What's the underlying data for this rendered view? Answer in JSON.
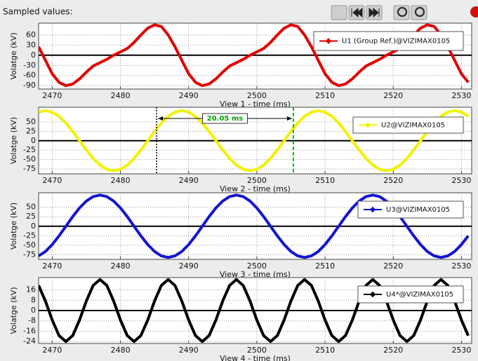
{
  "title": "Sampled values:",
  "chart_data": [
    {
      "type": "line",
      "xlabel": "View 1 - time (ms)",
      "ylabel": "Volatge (kV)",
      "x": [
        2468,
        2469,
        2470,
        2471,
        2472,
        2473,
        2474,
        2475,
        2476,
        2477,
        2478,
        2479,
        2480,
        2481,
        2482,
        2483,
        2484,
        2485,
        2486,
        2487,
        2488,
        2489,
        2490,
        2491,
        2492,
        2493,
        2494,
        2495,
        2496,
        2497,
        2498,
        2499,
        2500,
        2501,
        2502,
        2503,
        2504,
        2505,
        2506,
        2507,
        2508,
        2509,
        2510,
        2511,
        2512,
        2513,
        2514,
        2515,
        2516,
        2517,
        2518,
        2519,
        2520,
        2521,
        2522,
        2523,
        2524,
        2525,
        2526,
        2527,
        2528,
        2529,
        2530,
        2531
      ],
      "series": [
        {
          "name": "U1 (Group Ref.)@VIZIMAX0105",
          "color": "#e00000",
          "values": [
            25,
            -15,
            -55,
            -80,
            -90,
            -85,
            -70,
            -50,
            -32,
            -22,
            -12,
            0,
            10,
            20,
            38,
            60,
            80,
            90,
            85,
            60,
            25,
            -15,
            -55,
            -80,
            -90,
            -85,
            -70,
            -50,
            -32,
            -22,
            -12,
            0,
            10,
            20,
            38,
            60,
            80,
            90,
            85,
            60,
            25,
            -15,
            -55,
            -80,
            -90,
            -85,
            -70,
            -50,
            -32,
            -22,
            -12,
            0,
            10,
            20,
            38,
            60,
            80,
            90,
            85,
            60,
            25,
            -15,
            -55,
            -80
          ]
        }
      ],
      "xlim": [
        2468,
        2531.5
      ],
      "xticks": [
        2470,
        2480,
        2490,
        2500,
        2510,
        2520,
        2530
      ],
      "ylim": [
        -100,
        95
      ],
      "yticks": [
        -90,
        -60,
        -30,
        0,
        30,
        60
      ],
      "grid": true
    },
    {
      "type": "line",
      "xlabel": "View 2 - time (ms)",
      "ylabel": "Volatge (kV)",
      "x": [
        2468,
        2469,
        2470,
        2471,
        2472,
        2473,
        2474,
        2475,
        2476,
        2477,
        2478,
        2479,
        2480,
        2481,
        2482,
        2483,
        2484,
        2485,
        2486,
        2487,
        2488,
        2489,
        2490,
        2491,
        2492,
        2493,
        2494,
        2495,
        2496,
        2497,
        2498,
        2499,
        2500,
        2501,
        2502,
        2503,
        2504,
        2505,
        2506,
        2507,
        2508,
        2509,
        2510,
        2511,
        2512,
        2513,
        2514,
        2515,
        2516,
        2517,
        2518,
        2519,
        2520,
        2521,
        2522,
        2523,
        2524,
        2525,
        2526,
        2527,
        2528,
        2529,
        2530,
        2531
      ],
      "series": [
        {
          "name": "U2@VIZIMAX0105",
          "color": "#f2f200",
          "values": [
            76.1,
            80,
            76.1,
            64.7,
            47,
            24.7,
            0,
            -24.7,
            -47,
            -64.7,
            -76.1,
            -80,
            -76.1,
            -64.7,
            -47,
            -24.7,
            0,
            24.7,
            47,
            64.7,
            76.1,
            80,
            76.1,
            64.7,
            47,
            24.7,
            0,
            -24.7,
            -47,
            -64.7,
            -76.1,
            -80,
            -76.1,
            -64.7,
            -47,
            -24.7,
            0,
            24.7,
            47,
            64.7,
            76.1,
            80,
            76.1,
            64.7,
            47,
            24.7,
            0,
            -24.7,
            -47,
            -64.7,
            -76.1,
            -80,
            -76.1,
            -64.7,
            -47,
            -24.7,
            0,
            24.7,
            47,
            64.7,
            76.1,
            80,
            76.1,
            64.7
          ]
        }
      ],
      "xlim": [
        2468,
        2531.5
      ],
      "xticks": [
        2470,
        2480,
        2490,
        2500,
        2510,
        2520,
        2530
      ],
      "ylim": [
        -88,
        89
      ],
      "yticks": [
        -75,
        -50,
        -25,
        0,
        25,
        50
      ],
      "grid": true,
      "cursors": [
        2485.3,
        2505.35
      ],
      "annotation": "20.05 ms"
    },
    {
      "type": "line",
      "xlabel": "View 3 - time (ms)",
      "ylabel": "Volatge (kV)",
      "x": [
        2468,
        2469,
        2470,
        2471,
        2472,
        2473,
        2474,
        2475,
        2476,
        2477,
        2478,
        2479,
        2480,
        2481,
        2482,
        2483,
        2484,
        2485,
        2486,
        2487,
        2488,
        2489,
        2490,
        2491,
        2492,
        2493,
        2494,
        2495,
        2496,
        2497,
        2498,
        2499,
        2500,
        2501,
        2502,
        2503,
        2504,
        2505,
        2506,
        2507,
        2508,
        2509,
        2510,
        2511,
        2512,
        2513,
        2514,
        2515,
        2516,
        2517,
        2518,
        2519,
        2520,
        2521,
        2522,
        2523,
        2524,
        2525,
        2526,
        2527,
        2528,
        2529,
        2530,
        2531
      ],
      "series": [
        {
          "name": "U3@VIZIMAX0105",
          "color": "#1414d0",
          "values": [
            -78,
            -66.3,
            -48.2,
            -25.3,
            0,
            25.3,
            48.2,
            66.3,
            78,
            82,
            78,
            66.3,
            48.2,
            25.3,
            0,
            -25.3,
            -48.2,
            -66.3,
            -78,
            -82,
            -78,
            -66.3,
            -48.2,
            -25.3,
            0,
            25.3,
            48.2,
            66.3,
            78,
            82,
            78,
            66.3,
            48.2,
            25.3,
            0,
            -25.3,
            -48.2,
            -66.3,
            -78,
            -82,
            -78,
            -66.3,
            -48.2,
            -25.3,
            0,
            25.3,
            48.2,
            66.3,
            78,
            82,
            78,
            66.3,
            48.2,
            25.3,
            0,
            -25.3,
            -48.2,
            -66.3,
            -78,
            -82,
            -78,
            -66.3,
            -48.2,
            -25.3
          ]
        }
      ],
      "xlim": [
        2468,
        2531.5
      ],
      "xticks": [
        2470,
        2480,
        2490,
        2500,
        2510,
        2520,
        2530
      ],
      "ylim": [
        -87,
        88
      ],
      "yticks": [
        -75,
        -50,
        -25,
        0,
        25,
        50
      ],
      "grid": true
    },
    {
      "type": "line",
      "xlabel": "View 4 - time (ms)",
      "ylabel": "Volatge (kV)",
      "x": [
        2468,
        2469,
        2470,
        2471,
        2472,
        2473,
        2474,
        2475,
        2476,
        2477,
        2478,
        2479,
        2480,
        2481,
        2482,
        2483,
        2484,
        2485,
        2486,
        2487,
        2488,
        2489,
        2490,
        2491,
        2492,
        2493,
        2494,
        2495,
        2496,
        2497,
        2498,
        2499,
        2500,
        2501,
        2502,
        2503,
        2504,
        2505,
        2506,
        2507,
        2508,
        2509,
        2510,
        2511,
        2512,
        2513,
        2514,
        2515,
        2516,
        2517,
        2518,
        2519,
        2520,
        2521,
        2522,
        2523,
        2524,
        2525,
        2526,
        2527,
        2528,
        2529,
        2530,
        2531
      ],
      "series": [
        {
          "name": "U4*@VIZIMAX0105",
          "color": "#000000",
          "values": [
            19.4,
            7.4,
            -7.4,
            -19.4,
            -24,
            -19.4,
            -7.4,
            7.4,
            19.4,
            24,
            19.4,
            7.4,
            -7.4,
            -19.4,
            -24,
            -19.4,
            -7.4,
            7.4,
            19.4,
            24,
            19.4,
            7.4,
            -7.4,
            -19.4,
            -24,
            -19.4,
            -7.4,
            7.4,
            19.4,
            24,
            19.4,
            7.4,
            -7.4,
            -19.4,
            -24,
            -19.4,
            -7.4,
            7.4,
            19.4,
            24,
            19.4,
            7.4,
            -7.4,
            -19.4,
            -24,
            -19.4,
            -7.4,
            7.4,
            19.4,
            24,
            19.4,
            7.4,
            -7.4,
            -19.4,
            -24,
            -19.4,
            -7.4,
            7.4,
            19.4,
            24,
            19.4,
            7.4,
            -7.4,
            -19.4
          ]
        }
      ],
      "xlim": [
        2468,
        2531.5
      ],
      "xticks": [
        2470,
        2480,
        2490,
        2500,
        2510,
        2520,
        2530
      ],
      "ylim": [
        -25.5,
        25.5
      ],
      "yticks": [
        -24,
        -16,
        -8,
        0,
        8,
        16
      ],
      "grid": true
    }
  ]
}
